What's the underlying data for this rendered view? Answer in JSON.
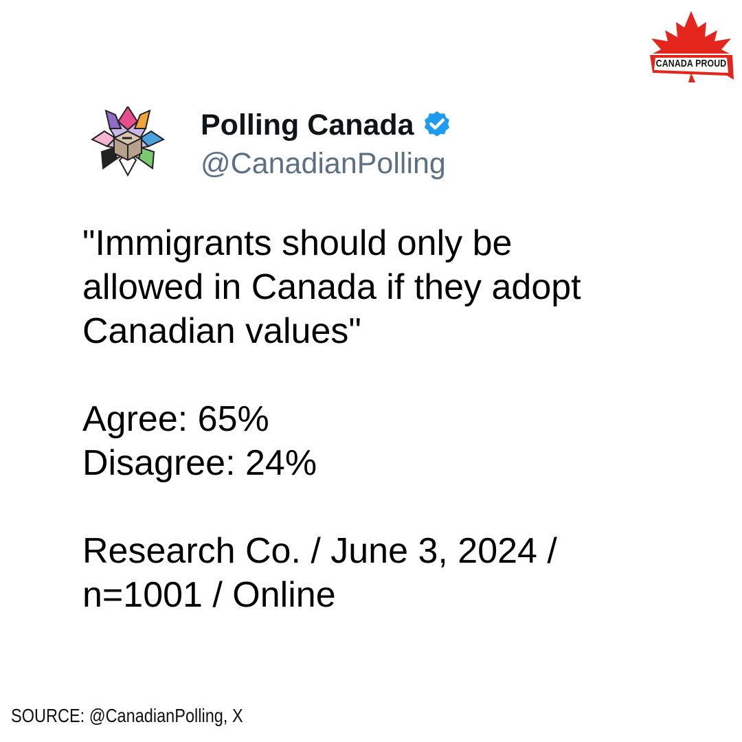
{
  "brand": {
    "text": "CANADA PROUD",
    "icon": "maple-leaf-icon",
    "color": "#e3251b"
  },
  "account": {
    "name": "Polling Canada",
    "handle": "@CanadianPolling",
    "avatar_icon": "polling-canada-logo-icon",
    "verified_icon": "verified-badge-icon",
    "verified_color": "#1d9bf0"
  },
  "tweet": {
    "question_lines": [
      "\"Immigrants should only be",
      "allowed in Canada if they adopt",
      "Canadian values\""
    ],
    "results": [
      "Agree: 65%",
      "Disagree: 24%"
    ],
    "methodology_lines": [
      "Research Co. / June 3, 2024 /",
      "n=1001 / Online"
    ]
  },
  "source": {
    "text": "SOURCE: @CanadianPolling, X"
  }
}
